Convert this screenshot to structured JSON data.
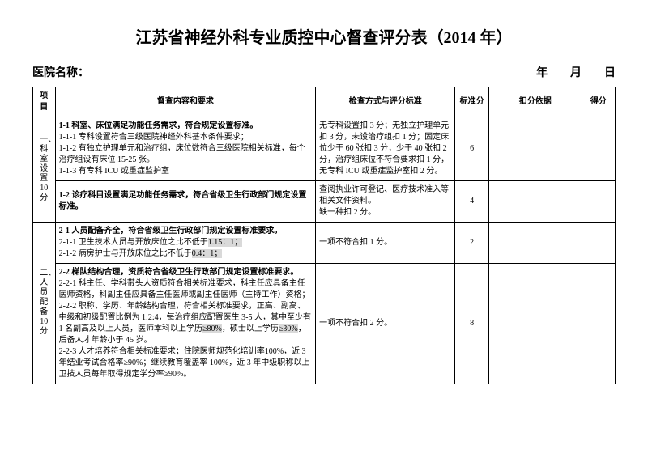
{
  "title": "江苏省神经外科专业质控中心督查评分表（2014 年）",
  "hospital_label": "医院名称：",
  "date_label": "年　　月　　日",
  "columns": {
    "project": "项目",
    "content": "督查内容和要求",
    "method": "检查方式与评分标准",
    "standard": "标准分",
    "deduct": "扣分依据",
    "score": "得分"
  },
  "sections": [
    {
      "project_label": "一、科室设置10分",
      "rows": [
        {
          "content_bold": "1-1 科室、床位满足功能任务需求，符合规定设置标准。",
          "content_lines": [
            "1-1-1 专科设置符合三级医院神经外科基本条件要求；",
            "1-1-2 有独立护理单元和治疗组，床位数符合三级医院相关标准，每个治疗组设有床位 15-25 张。",
            "1-1-3 有专科 ICU 或重症监护室"
          ],
          "method": "无专科设置扣 3 分；无独立护理单元扣 3 分，未设治疗组扣 1 分；固定床位少于 60 张扣 3 分，少于 40 张扣 2 分，治疗组床位不符合要求扣 1 分，无专科 ICU 或重症监护室扣 2 分。",
          "standard": "6"
        },
        {
          "content_bold": "1-2 诊疗科目设置满足功能任务需求，符合省级卫生行政部门规定设置标准。",
          "method": "查阅执业许可登记、医疗技术准入等相关文件资料。\n缺一种扣 2 分。",
          "standard": "4"
        }
      ]
    },
    {
      "project_label": "二、人员配备10分",
      "rows": [
        {
          "content_bold": "2-1 人员配备齐全，符合省级卫生行政部门规定设置标准要求。",
          "content_lines_hl": [
            {
              "pre": "2-1-1 卫生技术人员与开放床位之比不低于",
              "hl": "1.15：1；"
            },
            {
              "pre": "2-1-2 病房护士与开放床位之比不低于",
              "hl": "0.4：1；"
            }
          ],
          "method": "一项不符合扣 1 分。",
          "standard": "2"
        },
        {
          "content_bold": "2-2 梯队结构合理，资质符合省级卫生行政部门规定设置标准要求。",
          "content_lines2": [
            "2-2-1 科主任、学科带头人资质符合相关标准要求，科主任应具备主任医师资格，科副主任应具备主任医师或副主任医师（主持工作）资格；",
            {
              "text": "2-2-2 职称、学历、年龄结构合理，符合相关标准要求，正高、副高、中级和初级配置比例为 1:2:4，每治疗组应配置医生 3-5 人，其中至少有 1 名副高及以上人员，医师本科以上学历",
              "hl1": "≥80%",
              "mid": "，硕士以上学历",
              "hl2": "≥30%",
              "tail": "，后备人才年龄小于 45 岁。"
            },
            "2-2-3 人才培养符合相关标准要求；住院医师规范化培训率100%，近 3 年结业考试合格率≥90%；继续教育覆盖率 100%，近 3 年中级职称以上卫技人员每年取得规定学分率≥90%。"
          ],
          "method": "一项不符合扣 2 分。",
          "standard": "8"
        }
      ]
    }
  ]
}
